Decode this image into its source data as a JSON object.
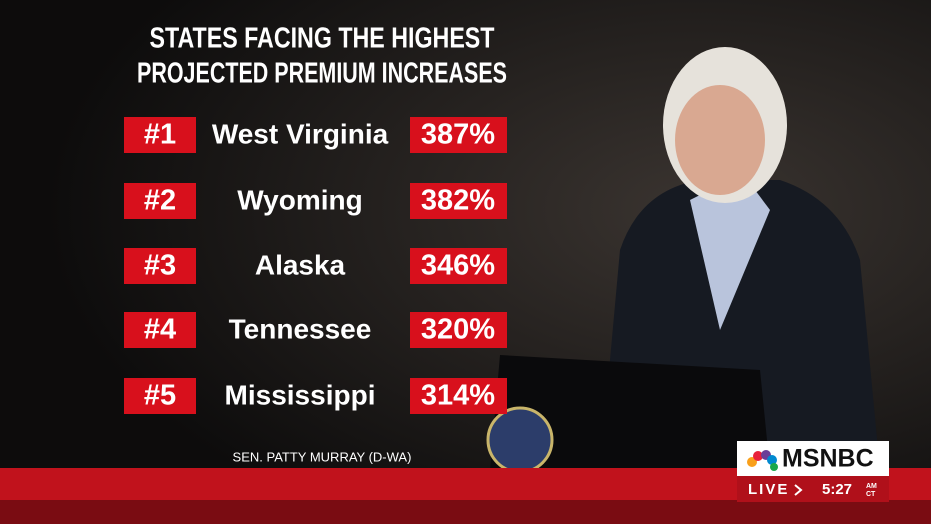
{
  "graphic": {
    "title_lines": [
      "STATES FACING THE HIGHEST",
      "PROJECTED PREMIUM INCREASES"
    ],
    "rows": [
      {
        "rank": "#1",
        "state": "West Virginia",
        "increase": "387%"
      },
      {
        "rank": "#2",
        "state": "Wyoming",
        "increase": "382%"
      },
      {
        "rank": "#3",
        "state": "Alaska",
        "increase": "346%"
      },
      {
        "rank": "#4",
        "state": "Tennessee",
        "increase": "320%"
      },
      {
        "rank": "#5",
        "state": "Mississippi",
        "increase": "314%"
      }
    ],
    "caption": "SEN. PATTY MURRAY (D-WA)"
  },
  "bug": {
    "network": "MSNBC",
    "live": "LIVE",
    "time": "5:27",
    "meridiem": "AM",
    "zone": "CT"
  }
}
